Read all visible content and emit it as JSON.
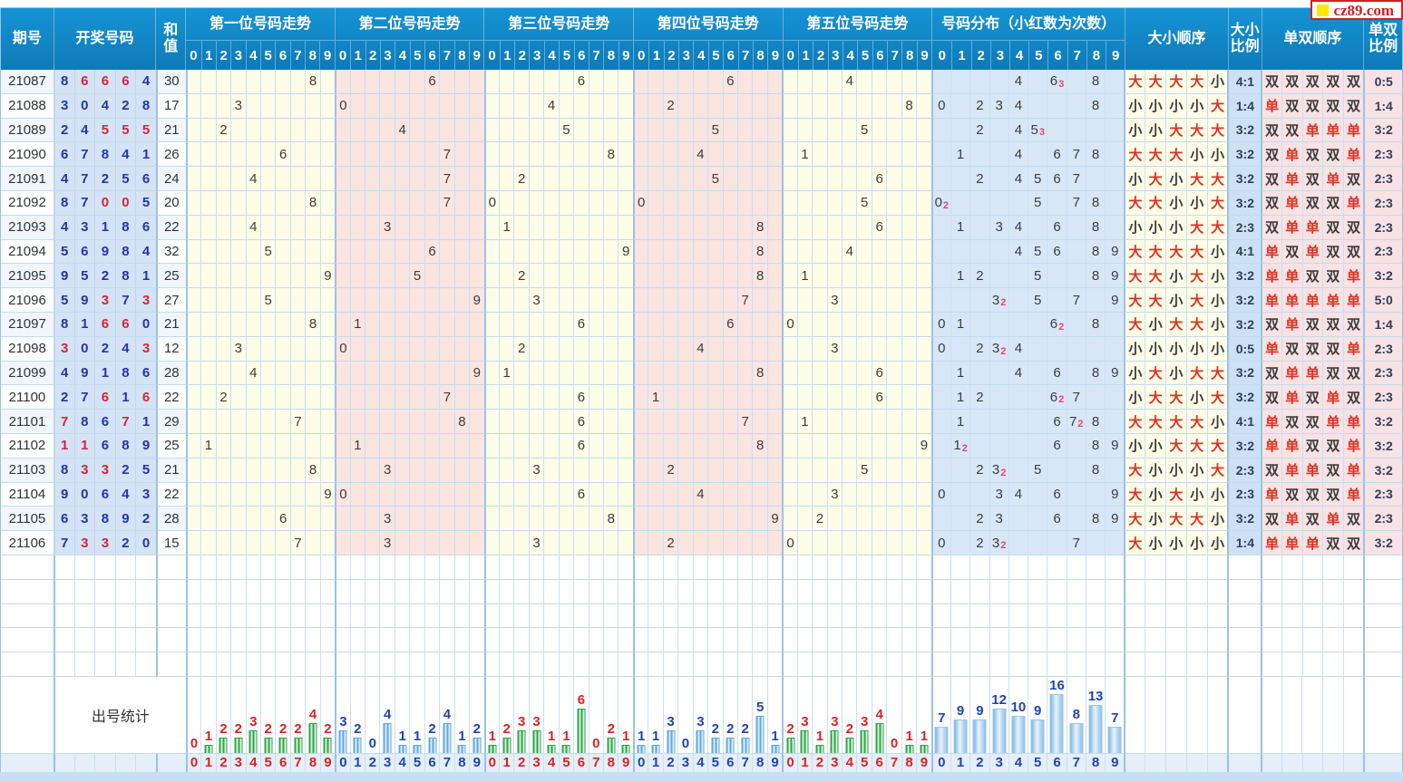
{
  "logo": {
    "text": "cz89.com"
  },
  "header": {
    "period": "期号",
    "numbers": "开奖号码",
    "sum_top": "和",
    "sum_bottom": "值",
    "sections": [
      "第一位号码走势",
      "第二位号码走势",
      "第三位号码走势",
      "第四位号码走势",
      "第五位号码走势"
    ],
    "distribution": "号码分布（小红数为次数）",
    "bs_order": "大小顺序",
    "bs_ratio_top": "大小",
    "bs_ratio_bottom": "比例",
    "oe_order": "单双顺序",
    "oe_ratio_top": "单双",
    "oe_ratio_bottom": "比例",
    "digits": [
      "0",
      "1",
      "2",
      "3",
      "4",
      "5",
      "6",
      "7",
      "8",
      "9"
    ]
  },
  "rows": [
    {
      "period": "21087",
      "digits": [
        8,
        6,
        6,
        6,
        4
      ],
      "sum": "30",
      "bs_order": "大大大大小",
      "bs_ratio": "4:1",
      "oe_order": "双双双双双",
      "oe_ratio": "0:5"
    },
    {
      "period": "21088",
      "digits": [
        3,
        0,
        4,
        2,
        8
      ],
      "sum": "17",
      "bs_order": "小小小小大",
      "bs_ratio": "1:4",
      "oe_order": "单双双双双",
      "oe_ratio": "1:4"
    },
    {
      "period": "21089",
      "digits": [
        2,
        4,
        5,
        5,
        5
      ],
      "sum": "21",
      "bs_order": "小小大大大",
      "bs_ratio": "3:2",
      "oe_order": "双双单单单",
      "oe_ratio": "3:2"
    },
    {
      "period": "21090",
      "digits": [
        6,
        7,
        8,
        4,
        1
      ],
      "sum": "26",
      "bs_order": "大大大小小",
      "bs_ratio": "3:2",
      "oe_order": "双单双双单",
      "oe_ratio": "2:3"
    },
    {
      "period": "21091",
      "digits": [
        4,
        7,
        2,
        5,
        6
      ],
      "sum": "24",
      "bs_order": "小大小大大",
      "bs_ratio": "3:2",
      "oe_order": "双单双单双",
      "oe_ratio": "2:3"
    },
    {
      "period": "21092",
      "digits": [
        8,
        7,
        0,
        0,
        5
      ],
      "sum": "20",
      "bs_order": "大大小小大",
      "bs_ratio": "3:2",
      "oe_order": "双单双双单",
      "oe_ratio": "2:3"
    },
    {
      "period": "21093",
      "digits": [
        4,
        3,
        1,
        8,
        6
      ],
      "sum": "22",
      "bs_order": "小小小大大",
      "bs_ratio": "2:3",
      "oe_order": "双单单双双",
      "oe_ratio": "2:3"
    },
    {
      "period": "21094",
      "digits": [
        5,
        6,
        9,
        8,
        4
      ],
      "sum": "32",
      "bs_order": "大大大大小",
      "bs_ratio": "4:1",
      "oe_order": "单双单双双",
      "oe_ratio": "2:3"
    },
    {
      "period": "21095",
      "digits": [
        9,
        5,
        2,
        8,
        1
      ],
      "sum": "25",
      "bs_order": "大大小大小",
      "bs_ratio": "3:2",
      "oe_order": "单单双双单",
      "oe_ratio": "3:2"
    },
    {
      "period": "21096",
      "digits": [
        5,
        9,
        3,
        7,
        3
      ],
      "sum": "27",
      "bs_order": "大大小大小",
      "bs_ratio": "3:2",
      "oe_order": "单单单单单",
      "oe_ratio": "5:0"
    },
    {
      "period": "21097",
      "digits": [
        8,
        1,
        6,
        6,
        0
      ],
      "sum": "21",
      "bs_order": "大小大大小",
      "bs_ratio": "3:2",
      "oe_order": "双单双双双",
      "oe_ratio": "1:4"
    },
    {
      "period": "21098",
      "digits": [
        3,
        0,
        2,
        4,
        3
      ],
      "sum": "12",
      "bs_order": "小小小小小",
      "bs_ratio": "0:5",
      "oe_order": "单双双双单",
      "oe_ratio": "2:3"
    },
    {
      "period": "21099",
      "digits": [
        4,
        9,
        1,
        8,
        6
      ],
      "sum": "28",
      "bs_order": "小大小大大",
      "bs_ratio": "3:2",
      "oe_order": "双单单双双",
      "oe_ratio": "2:3"
    },
    {
      "period": "21100",
      "digits": [
        2,
        7,
        6,
        1,
        6
      ],
      "sum": "22",
      "bs_order": "小大大小大",
      "bs_ratio": "3:2",
      "oe_order": "双单双单双",
      "oe_ratio": "2:3"
    },
    {
      "period": "21101",
      "digits": [
        7,
        8,
        6,
        7,
        1
      ],
      "sum": "29",
      "bs_order": "大大大大小",
      "bs_ratio": "4:1",
      "oe_order": "单双双单单",
      "oe_ratio": "3:2"
    },
    {
      "period": "21102",
      "digits": [
        1,
        1,
        6,
        8,
        9
      ],
      "sum": "25",
      "bs_order": "小小大大大",
      "bs_ratio": "3:2",
      "oe_order": "单单双双单",
      "oe_ratio": "3:2"
    },
    {
      "period": "21103",
      "digits": [
        8,
        3,
        3,
        2,
        5
      ],
      "sum": "21",
      "bs_order": "大小小小大",
      "bs_ratio": "2:3",
      "oe_order": "双单单双单",
      "oe_ratio": "3:2"
    },
    {
      "period": "21104",
      "digits": [
        9,
        0,
        6,
        4,
        3
      ],
      "sum": "22",
      "bs_order": "大小大小小",
      "bs_ratio": "2:3",
      "oe_order": "单双双双单",
      "oe_ratio": "2:3"
    },
    {
      "period": "21105",
      "digits": [
        6,
        3,
        8,
        9,
        2
      ],
      "sum": "28",
      "bs_order": "大小大大小",
      "bs_ratio": "3:2",
      "oe_order": "双单双单双",
      "oe_ratio": "2:3"
    },
    {
      "period": "21106",
      "digits": [
        7,
        3,
        3,
        2,
        0
      ],
      "sum": "15",
      "bs_order": "大小小小小",
      "bs_ratio": "1:4",
      "oe_order": "单单单双双",
      "oe_ratio": "3:2"
    }
  ],
  "stats": {
    "label": "出号统计",
    "position_counts": [
      [
        0,
        1,
        2,
        2,
        3,
        2,
        2,
        2,
        4,
        2
      ],
      [
        3,
        2,
        0,
        4,
        1,
        1,
        2,
        4,
        1,
        2
      ],
      [
        1,
        2,
        3,
        3,
        1,
        1,
        6,
        0,
        2,
        1
      ],
      [
        1,
        1,
        3,
        0,
        3,
        2,
        2,
        2,
        5,
        1
      ],
      [
        2,
        3,
        1,
        3,
        2,
        3,
        4,
        0,
        1,
        1
      ]
    ],
    "distribution_counts": [
      7,
      9,
      9,
      12,
      10,
      9,
      16,
      8,
      13,
      7
    ]
  },
  "chart_data": [
    {
      "type": "bar",
      "title": "第一位号码出号统计",
      "categories": [
        "0",
        "1",
        "2",
        "3",
        "4",
        "5",
        "6",
        "7",
        "8",
        "9"
      ],
      "values": [
        0,
        1,
        2,
        2,
        3,
        2,
        2,
        2,
        4,
        2
      ],
      "ylim": [
        0,
        6
      ],
      "bar_color": "green",
      "label_color": "red"
    },
    {
      "type": "bar",
      "title": "第二位号码出号统计",
      "categories": [
        "0",
        "1",
        "2",
        "3",
        "4",
        "5",
        "6",
        "7",
        "8",
        "9"
      ],
      "values": [
        3,
        2,
        0,
        4,
        1,
        1,
        2,
        4,
        1,
        2
      ],
      "ylim": [
        0,
        6
      ],
      "bar_color": "blue",
      "label_color": "blue"
    },
    {
      "type": "bar",
      "title": "第三位号码出号统计",
      "categories": [
        "0",
        "1",
        "2",
        "3",
        "4",
        "5",
        "6",
        "7",
        "8",
        "9"
      ],
      "values": [
        1,
        2,
        3,
        3,
        1,
        1,
        6,
        0,
        2,
        1
      ],
      "ylim": [
        0,
        6
      ],
      "bar_color": "green",
      "label_color": "red"
    },
    {
      "type": "bar",
      "title": "第四位号码出号统计",
      "categories": [
        "0",
        "1",
        "2",
        "3",
        "4",
        "5",
        "6",
        "7",
        "8",
        "9"
      ],
      "values": [
        1,
        1,
        3,
        0,
        3,
        2,
        2,
        2,
        5,
        1
      ],
      "ylim": [
        0,
        6
      ],
      "bar_color": "blue",
      "label_color": "blue"
    },
    {
      "type": "bar",
      "title": "第五位号码出号统计",
      "categories": [
        "0",
        "1",
        "2",
        "3",
        "4",
        "5",
        "6",
        "7",
        "8",
        "9"
      ],
      "values": [
        2,
        3,
        1,
        3,
        2,
        3,
        4,
        0,
        1,
        1
      ],
      "ylim": [
        0,
        6
      ],
      "bar_color": "green",
      "label_color": "red"
    },
    {
      "type": "bar",
      "title": "号码分布出号统计",
      "categories": [
        "0",
        "1",
        "2",
        "3",
        "4",
        "5",
        "6",
        "7",
        "8",
        "9"
      ],
      "values": [
        7,
        9,
        9,
        12,
        10,
        9,
        16,
        8,
        13,
        7
      ],
      "ylim": [
        0,
        16
      ],
      "bar_color": "blue",
      "label_color": "blue"
    }
  ],
  "colors": {
    "header_bg": "#1288C8",
    "section_yellow": "#FDFDE8",
    "section_pink": "#FAE5E1",
    "distribution_blue": "#D8E7F8",
    "number_blue": "#2135B0",
    "repeat_red": "#D02838",
    "big_odd_red": "#DC3222",
    "count_sub_red": "#E2486E",
    "bar_green": "#2FA44A",
    "bar_blue": "#5FA8DC"
  }
}
